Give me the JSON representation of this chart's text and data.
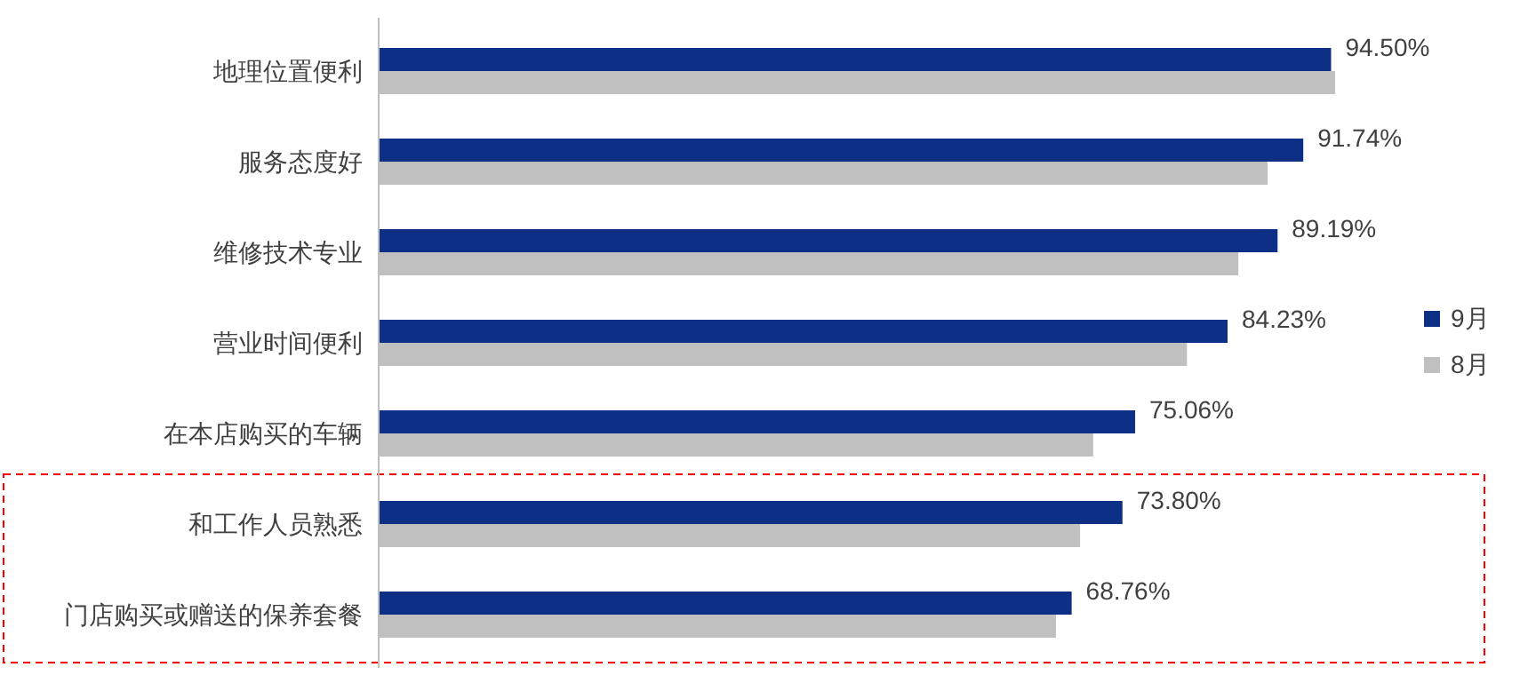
{
  "chart_data": {
    "type": "bar",
    "orientation": "horizontal",
    "categories": [
      "地理位置便利",
      "服务态度好",
      "维修技术专业",
      "营业时间便利",
      "在本店购买的车辆",
      "和工作人员熟悉",
      "门店购买或赠送的保养套餐"
    ],
    "series": [
      {
        "name": "9月",
        "color": "#0d2f86",
        "values": [
          94.5,
          91.74,
          89.19,
          84.23,
          75.06,
          73.8,
          68.76
        ],
        "value_labels": [
          "94.50%",
          "91.74%",
          "89.19%",
          "84.23%",
          "75.06%",
          "73.80%",
          "68.76%"
        ]
      },
      {
        "name": "8月",
        "color": "#c0c0c0",
        "values": [
          94.9,
          88.2,
          85.3,
          80.2,
          70.9,
          69.6,
          67.2
        ]
      }
    ],
    "legend": "right"
  }
}
